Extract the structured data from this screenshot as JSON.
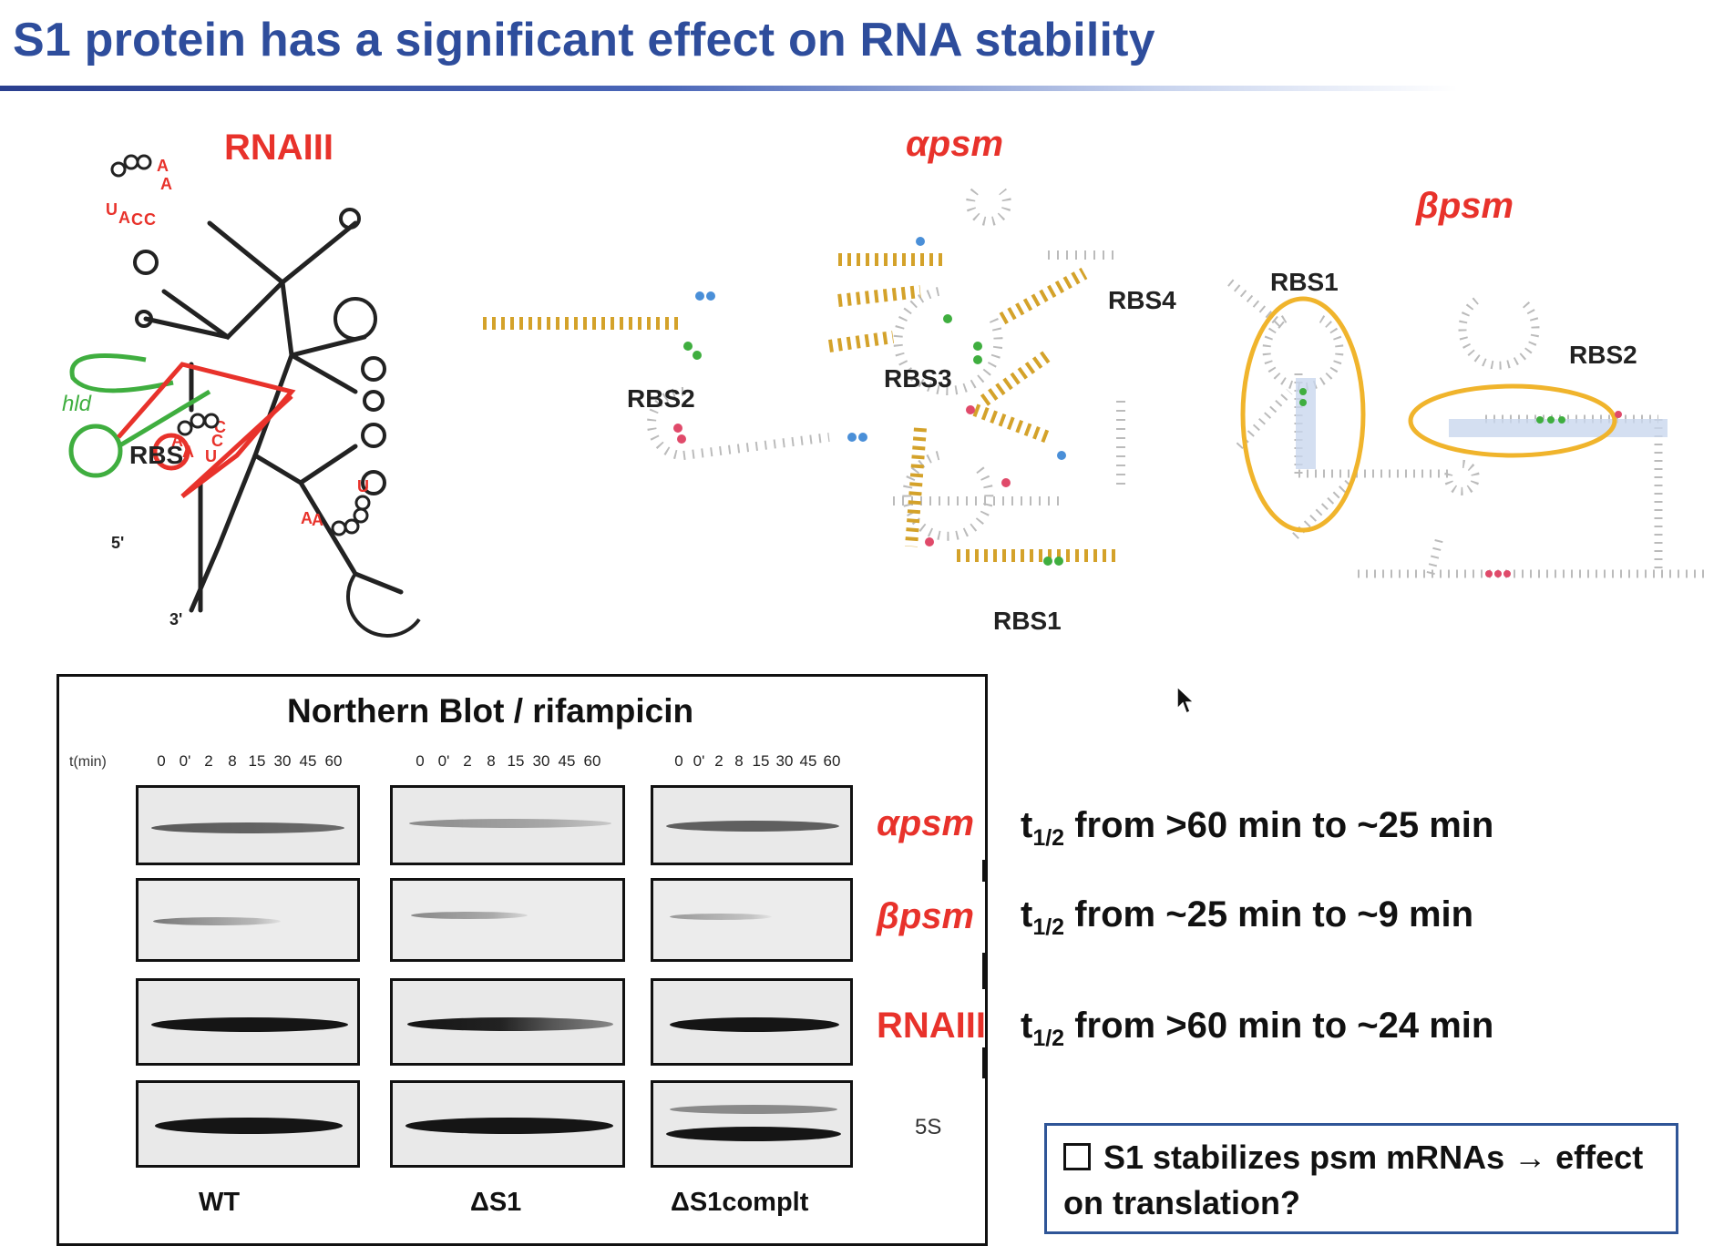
{
  "slide": {
    "title": "S1 protein has a significant effect on RNA stability"
  },
  "structures": {
    "rnaiii": {
      "title": "RNAIII",
      "labels": {
        "hld": "hld",
        "rbs": "RBS",
        "five_prime": "5'",
        "three_prime": "3'"
      }
    },
    "apsm": {
      "title": "αpsm",
      "labels": {
        "rbs1": "RBS1",
        "rbs2": "RBS2",
        "rbs3": "RBS3",
        "rbs4": "RBS4"
      }
    },
    "bpsm": {
      "title": "βpsm",
      "labels": {
        "rbs1": "RBS1",
        "rbs2": "RBS2"
      }
    }
  },
  "northern_blot": {
    "title": "Northern Blot / rifampicin",
    "time_label": "t(min)",
    "timepoints": [
      "0",
      "0'",
      "2",
      "8",
      "15",
      "30",
      "45",
      "60"
    ],
    "strains": [
      "WT",
      "ΔS1",
      "ΔS1complt"
    ],
    "rows": [
      {
        "name": "αpsm",
        "half_life_prefix": "t",
        "half_life_sub": "1/2",
        "half_life_text": " from >60 min to ~25 min"
      },
      {
        "name": "βpsm",
        "half_life_prefix": "t",
        "half_life_sub": "1/2",
        "half_life_text": " from ~25 min to ~9 min"
      },
      {
        "name": "RNAIII",
        "half_life_prefix": "t",
        "half_life_sub": "1/2",
        "half_life_text": " from >60 min to ~24 min"
      },
      {
        "name": "5S"
      }
    ]
  },
  "conclusion": {
    "text": "S1 stabilizes psm mRNAs → effect on translation?"
  },
  "colors": {
    "title_blue": "#2e4d9c",
    "accent_red": "#e8322b",
    "rbs_green": "#3fae3f",
    "stem_gold": "#d4a22a",
    "box_blue": "#2f5597"
  }
}
